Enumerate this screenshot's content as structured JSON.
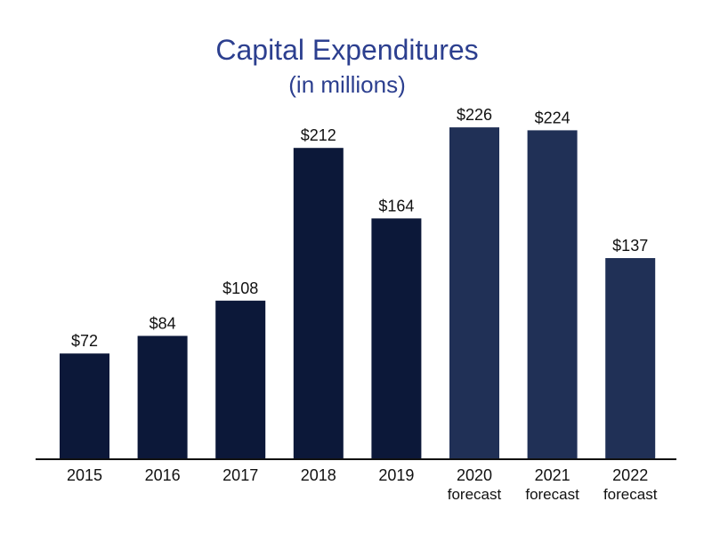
{
  "chart_data": {
    "type": "bar",
    "title": "Capital Expenditures",
    "subtitle": "(in millions)",
    "xlabel": "",
    "ylabel": "",
    "ylim": [
      0,
      240
    ],
    "grid": false,
    "legend": "none",
    "categories": [
      "2015",
      "2016",
      "2017",
      "2018",
      "2019",
      "2020",
      "2021",
      "2022"
    ],
    "category_sublabels": [
      "",
      "",
      "",
      "",
      "",
      "forecast",
      "forecast",
      "forecast"
    ],
    "values": [
      72,
      84,
      108,
      212,
      164,
      226,
      224,
      137
    ],
    "value_labels": [
      "$72",
      "$84",
      "$108",
      "$212",
      "$164",
      "$226",
      "$224",
      "$137"
    ],
    "series_kind": [
      "actual",
      "actual",
      "actual",
      "actual",
      "actual",
      "forecast",
      "forecast",
      "forecast"
    ],
    "colors": {
      "actual": "#0c1839",
      "forecast": "#203056",
      "title": "#2c3f8f",
      "axis": "#111111"
    }
  }
}
